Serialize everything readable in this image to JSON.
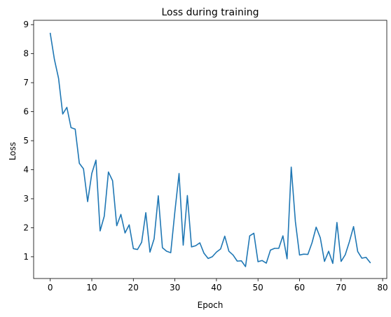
{
  "chart_data": {
    "type": "line",
    "title": "Loss during training",
    "xlabel": "Epoch",
    "ylabel": "Loss",
    "xlim": [
      -4,
      81
    ],
    "ylim": [
      0.25,
      9.15
    ],
    "xticks": [
      0,
      10,
      20,
      30,
      40,
      50,
      60,
      70,
      80
    ],
    "yticks": [
      1,
      2,
      3,
      4,
      5,
      6,
      7,
      8,
      9
    ],
    "grid": false,
    "line_color": "#1f77b4",
    "series": [
      {
        "x": [
          0,
          1,
          2,
          3,
          4,
          5,
          6,
          7,
          8,
          9,
          10,
          11,
          12,
          13,
          14,
          15,
          16,
          17,
          18,
          19,
          20,
          21,
          22,
          23,
          24,
          25,
          26,
          27,
          28,
          29,
          30,
          31,
          32,
          33,
          34,
          35,
          36,
          37,
          38,
          39,
          40,
          41,
          42,
          43,
          44,
          45,
          46,
          47,
          48,
          49,
          50,
          51,
          52,
          53,
          54,
          55,
          56,
          57,
          58,
          59,
          60,
          61,
          62,
          63,
          64,
          65,
          66,
          67,
          68,
          69,
          70,
          71,
          72,
          73,
          74,
          75,
          76,
          77
        ],
        "values": [
          8.7,
          7.8,
          7.15,
          5.92,
          6.15,
          5.45,
          5.4,
          4.22,
          4.03,
          2.9,
          3.87,
          4.33,
          1.89,
          2.4,
          3.92,
          3.62,
          2.07,
          2.46,
          1.82,
          2.1,
          1.28,
          1.25,
          1.5,
          2.52,
          1.16,
          1.62,
          3.1,
          1.31,
          1.19,
          1.14,
          2.56,
          3.87,
          1.4,
          3.11,
          1.34,
          1.38,
          1.48,
          1.12,
          0.94,
          1.0,
          1.16,
          1.27,
          1.71,
          1.19,
          1.06,
          0.85,
          0.86,
          0.66,
          1.72,
          1.81,
          0.83,
          0.87,
          0.78,
          1.23,
          1.29,
          1.29,
          1.72,
          0.93,
          4.09,
          2.21,
          1.06,
          1.09,
          1.08,
          1.48,
          2.02,
          1.65,
          0.84,
          1.19,
          0.77,
          2.18,
          0.84,
          1.07,
          1.52,
          2.04,
          1.18,
          0.95,
          0.98,
          0.8
        ]
      }
    ]
  }
}
